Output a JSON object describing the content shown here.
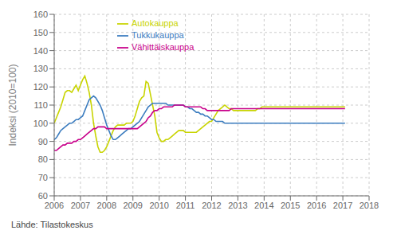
{
  "chart_data": {
    "type": "line",
    "ylabel": "Indeksi (2010=100)",
    "source": "Lähde: Tilastokeskus",
    "xlim": [
      2006,
      2018
    ],
    "ylim": [
      60,
      160
    ],
    "yticks": [
      60,
      70,
      80,
      90,
      100,
      110,
      120,
      130,
      140,
      150,
      160
    ],
    "xticks": [
      2006,
      2007,
      2008,
      2009,
      2010,
      2011,
      2012,
      2013,
      2014,
      2015,
      2016,
      2017,
      2018
    ],
    "grid": true,
    "legend": "upper left",
    "x": [
      2006,
      2006.0833333333333,
      2006.1666666666667,
      2006.25,
      2006.3333333333333,
      2006.4166666666667,
      2006.5,
      2006.5833333333333,
      2006.6666666666667,
      2006.75,
      2006.8333333333333,
      2006.9166666666667,
      2007,
      2007.0833333333333,
      2007.1666666666667,
      2007.25,
      2007.3333333333333,
      2007.4166666666667,
      2007.5,
      2007.5833333333333,
      2007.6666666666667,
      2007.75,
      2007.8333333333333,
      2007.9166666666667,
      2008,
      2008.0833333333333,
      2008.1666666666667,
      2008.25,
      2008.3333333333333,
      2008.4166666666667,
      2008.5,
      2008.5833333333333,
      2008.6666666666667,
      2008.75,
      2008.8333333333333,
      2008.9166666666667,
      2009,
      2009.0833333333333,
      2009.1666666666667,
      2009.25,
      2009.3333333333333,
      2009.4166666666667,
      2009.5,
      2009.5833333333333,
      2009.6666666666667,
      2009.75,
      2009.8333333333333,
      2009.9166666666667,
      2010,
      2010.0833333333333,
      2010.1666666666667,
      2010.25,
      2010.3333333333333,
      2010.4166666666667,
      2010.5,
      2010.5833333333333,
      2010.6666666666667,
      2010.75,
      2010.8333333333333,
      2010.9166666666667,
      2011,
      2011.0833333333333,
      2011.1666666666667,
      2011.25,
      2011.3333333333333,
      2011.4166666666667,
      2011.5,
      2011.5833333333333,
      2011.6666666666667,
      2011.75,
      2011.8333333333333,
      2011.9166666666667,
      2012,
      2012.0833333333333,
      2012.1666666666667,
      2012.25,
      2012.3333333333333,
      2012.4166666666667,
      2012.5,
      2012.5833333333333,
      2012.6666666666667,
      2012.75,
      2012.8333333333333,
      2012.9166666666667,
      2013,
      2013.0833333333333,
      2013.1666666666667,
      2013.25,
      2013.3333333333333,
      2013.4166666666667,
      2013.5,
      2013.5833333333333,
      2013.6666666666667,
      2013.75,
      2013.8333333333333,
      2013.9166666666667,
      2014,
      2014.0833333333333,
      2014.1666666666667,
      2014.25,
      2014.3333333333333,
      2014.4166666666667,
      2014.5,
      2014.5833333333333,
      2014.6666666666667,
      2014.75,
      2014.8333333333333,
      2014.9166666666667,
      2015,
      2015.0833333333333,
      2015.1666666666667,
      2015.25,
      2015.3333333333333,
      2015.4166666666667,
      2015.5,
      2015.5833333333333,
      2015.6666666666667,
      2015.75,
      2015.8333333333333,
      2015.9166666666667,
      2016,
      2016.0833333333333,
      2016.1666666666667,
      2016.25,
      2016.3333333333333,
      2016.4166666666667,
      2016.5,
      2016.5833333333333,
      2016.6666666666667,
      2016.75,
      2016.8333333333333,
      2016.9166666666667,
      2017,
      2017.0833333333333
    ],
    "series": [
      {
        "name": "Autokauppa",
        "color": "#c8d400",
        "values": [
          100,
          103,
          106,
          109,
          113,
          117,
          118,
          118,
          117,
          119,
          121,
          118,
          121,
          124,
          126,
          122,
          117,
          110,
          100,
          93,
          87,
          84,
          84,
          85,
          87,
          90,
          93,
          96,
          98,
          99,
          99,
          99,
          99,
          100,
          100,
          100,
          101,
          104,
          108,
          112,
          114,
          115,
          123,
          122,
          116,
          110,
          104,
          95,
          92,
          90,
          90,
          91,
          91,
          92,
          93,
          94,
          95,
          96,
          96,
          96,
          95,
          95,
          95,
          95,
          95,
          95,
          96,
          97,
          98,
          99,
          100,
          101,
          101,
          103,
          105,
          107,
          108,
          109,
          110,
          109,
          108,
          108,
          107,
          107,
          107,
          107,
          107,
          107,
          107,
          107,
          107,
          107,
          107,
          108,
          108,
          109,
          109,
          109,
          109,
          109,
          109,
          109,
          109,
          109,
          109,
          109,
          109,
          109,
          109,
          109,
          109,
          109,
          109,
          109,
          109,
          109,
          109,
          109,
          109,
          109,
          109,
          109,
          109,
          109,
          109,
          109,
          109,
          109,
          109,
          109,
          109,
          109,
          109,
          109
        ]
      },
      {
        "name": "Tukkukauppa",
        "color": "#3b7cbf",
        "values": [
          91,
          92,
          94,
          96,
          97,
          98,
          99,
          100,
          100,
          101,
          102,
          102,
          103,
          104,
          107,
          110,
          113,
          114,
          115,
          114,
          112,
          110,
          107,
          103,
          99,
          96,
          93,
          91,
          91,
          92,
          93,
          94,
          95,
          96,
          97,
          97,
          98,
          99,
          100,
          101,
          103,
          105,
          107,
          109,
          110,
          111,
          111,
          111,
          111,
          111,
          111,
          111,
          110,
          110,
          110,
          110,
          110,
          110,
          110,
          110,
          109,
          109,
          108,
          108,
          107,
          106,
          106,
          105,
          105,
          104,
          104,
          103,
          102,
          102,
          101,
          101,
          101,
          101,
          100,
          100,
          100,
          100,
          100,
          100,
          100,
          100,
          100,
          100,
          100,
          100,
          100,
          100,
          100,
          100,
          100,
          100,
          100,
          100,
          100,
          100,
          100,
          100,
          100,
          100,
          100,
          100,
          100,
          100,
          100,
          100,
          100,
          100,
          100,
          100,
          100,
          100,
          100,
          100,
          100,
          100,
          100,
          100,
          100,
          100,
          100,
          100,
          100,
          100,
          100,
          100,
          100,
          100,
          100,
          100
        ]
      },
      {
        "name": "Vähittäiskauppa",
        "color": "#c8008a",
        "values": [
          85,
          85,
          86,
          87,
          88,
          88,
          89,
          89,
          89,
          90,
          90,
          91,
          91,
          92,
          93,
          94,
          95,
          96,
          97,
          97,
          98,
          98,
          98,
          98,
          97,
          97,
          97,
          97,
          97,
          97,
          97,
          97,
          97,
          97,
          97,
          97,
          97,
          97,
          97,
          98,
          99,
          100,
          101,
          103,
          104,
          106,
          107,
          107,
          108,
          108,
          109,
          109,
          109,
          109,
          109,
          110,
          110,
          110,
          110,
          110,
          109,
          109,
          109,
          109,
          109,
          109,
          109,
          109,
          108,
          108,
          107,
          107,
          107,
          107,
          107,
          107,
          107,
          107,
          107,
          107,
          107,
          108,
          108,
          108,
          108,
          108,
          108,
          108,
          108,
          108,
          108,
          108,
          108,
          108,
          108,
          108,
          108,
          108,
          108,
          108,
          108,
          108,
          108,
          108,
          108,
          108,
          108,
          108,
          108,
          108,
          108,
          108,
          108,
          108,
          108,
          108,
          108,
          108,
          108,
          108,
          108,
          108,
          108,
          108,
          108,
          108,
          108,
          108,
          108,
          108,
          108,
          108,
          108,
          108
        ]
      }
    ]
  }
}
